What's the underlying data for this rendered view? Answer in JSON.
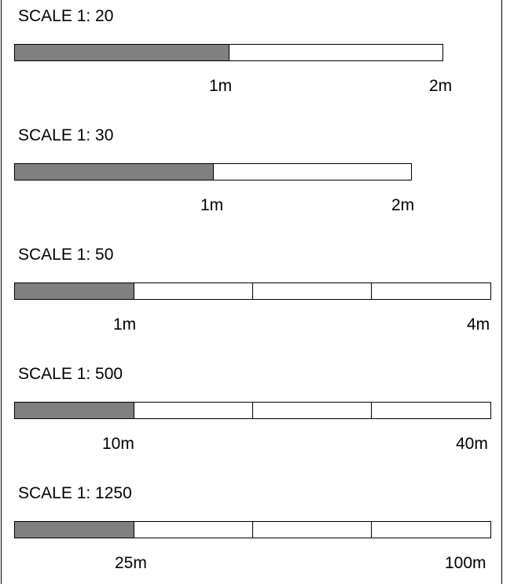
{
  "scales": [
    {
      "title": "SCALE 1: 20",
      "label_mid": "1m",
      "label_end": "2m",
      "filled_fraction": 0.5
    },
    {
      "title": "SCALE 1: 30",
      "label_mid": "1m",
      "label_end": "2m",
      "filled_fraction": 0.5
    },
    {
      "title": "SCALE 1: 50",
      "label_mid": "1m",
      "label_end": "4m",
      "filled_fraction": 0.25
    },
    {
      "title": "SCALE 1: 500",
      "label_mid": "10m",
      "label_end": "40m",
      "filled_fraction": 0.25
    },
    {
      "title": "SCALE 1: 1250",
      "label_mid": "25m",
      "label_end": "100m",
      "filled_fraction": 0.25
    }
  ],
  "colors": {
    "filled": "#808080",
    "empty": "#ffffff",
    "stroke": "#000000"
  }
}
